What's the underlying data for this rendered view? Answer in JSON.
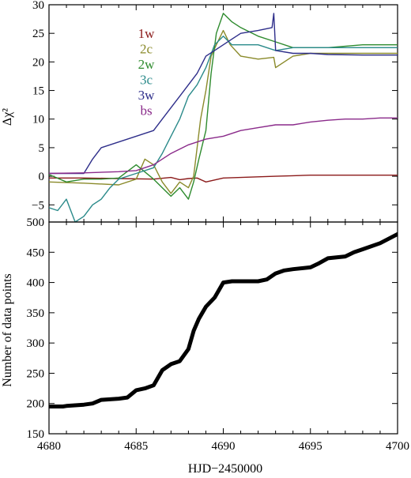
{
  "chart_data": [
    {
      "type": "line",
      "title": "",
      "xlabel": "",
      "ylabel": "Δχ²",
      "xlim": [
        4680,
        4700
      ],
      "ylim": [
        -8,
        30
      ],
      "yticks": [
        -5,
        0,
        5,
        10,
        15,
        20,
        25,
        30
      ],
      "grid": false,
      "legend_position": "top-center",
      "series": [
        {
          "name": "1w",
          "color": "#8b1a1a",
          "x": [
            4680,
            4682,
            4684,
            4686,
            4687,
            4687.5,
            4688,
            4688.5,
            4689,
            4690,
            4691,
            4692,
            4693,
            4694,
            4695,
            4696,
            4698,
            4700
          ],
          "y": [
            -0.3,
            -0.3,
            -0.4,
            -0.5,
            -0.2,
            -0.6,
            -0.4,
            -0.3,
            -1.0,
            -0.3,
            -0.2,
            -0.1,
            0.0,
            0.1,
            0.2,
            0.2,
            0.2,
            0.2
          ]
        },
        {
          "name": "2c",
          "color": "#8a8a2a",
          "x": [
            4680,
            4682,
            4684,
            4685,
            4685.5,
            4686,
            4686.5,
            4687,
            4687.5,
            4688,
            4688.3,
            4688.5,
            4688.7,
            4689,
            4689.3,
            4689.6,
            4690,
            4690.4,
            4691,
            4692,
            4692.9,
            4693,
            4694,
            4695,
            4696,
            4698,
            4700
          ],
          "y": [
            -1.0,
            -1.2,
            -1.5,
            -0.5,
            3.0,
            2.0,
            -1.0,
            -3.0,
            -1.0,
            -2.0,
            0.0,
            5.0,
            10.0,
            15.0,
            21.0,
            23.0,
            25.5,
            23.0,
            21.0,
            20.5,
            20.8,
            19.0,
            21.0,
            21.5,
            21.5,
            21.5,
            21.5
          ]
        },
        {
          "name": "2w",
          "color": "#2e8b2e",
          "x": [
            4680,
            4681,
            4682,
            4683,
            4684,
            4685,
            4686,
            4686.5,
            4687,
            4687.5,
            4688,
            4688.3,
            4688.6,
            4689,
            4689.3,
            4689.6,
            4690,
            4690.5,
            4691,
            4692,
            4693,
            4694,
            4695,
            4696,
            4698,
            4700
          ],
          "y": [
            0.3,
            -1.0,
            -0.5,
            -0.5,
            -0.3,
            2.0,
            -0.5,
            -2.0,
            -3.5,
            -2.0,
            -4.0,
            -1.0,
            3.0,
            8.0,
            18.0,
            25.0,
            28.5,
            27.0,
            26.0,
            24.5,
            23.5,
            22.5,
            22.5,
            22.5,
            23.0,
            23.0
          ]
        },
        {
          "name": "3c",
          "color": "#2a8a8a",
          "x": [
            4680,
            4680.5,
            4681,
            4681.5,
            4682,
            4682.5,
            4683,
            4683.5,
            4684,
            4685,
            4686,
            4686.5,
            4687,
            4687.5,
            4688,
            4688.5,
            4689,
            4689.5,
            4690,
            4690.5,
            4691,
            4692,
            4693,
            4694,
            4695,
            4696,
            4698,
            4700
          ],
          "y": [
            -5.5,
            -6.0,
            -4.0,
            -8.0,
            -7.0,
            -5.0,
            -4.0,
            -2.0,
            -0.5,
            0.5,
            1.5,
            4.0,
            7.0,
            10.0,
            14.0,
            16.0,
            19.0,
            23.0,
            24.5,
            23.0,
            23.0,
            23.0,
            22.0,
            22.5,
            22.5,
            22.5,
            22.5,
            22.5
          ]
        },
        {
          "name": "3w",
          "color": "#2e2e8a",
          "x": [
            4680,
            4681,
            4682,
            4682.5,
            4683,
            4684,
            4685,
            4686,
            4686.5,
            4687,
            4687.5,
            4688,
            4688.5,
            4689,
            4689.5,
            4690,
            4690.5,
            4691,
            4692,
            4692.8,
            4692.9,
            4693,
            4694,
            4695,
            4696,
            4698,
            4700
          ],
          "y": [
            0.5,
            0.5,
            0.5,
            3.0,
            5.0,
            6.0,
            7.0,
            8.0,
            10.0,
            12.0,
            14.0,
            16.0,
            18.0,
            21.0,
            22.0,
            23.0,
            24.0,
            25.0,
            25.5,
            26.0,
            28.5,
            22.0,
            21.5,
            21.5,
            21.3,
            21.2,
            21.2
          ]
        },
        {
          "name": "bs",
          "color": "#8a2a8a",
          "x": [
            4680,
            4682,
            4684,
            4685,
            4686,
            4687,
            4688,
            4689,
            4690,
            4691,
            4692,
            4693,
            4694,
            4695,
            4696,
            4697,
            4698,
            4699,
            4700
          ],
          "y": [
            0.5,
            0.6,
            0.8,
            1.0,
            2.0,
            4.0,
            5.5,
            6.5,
            7.0,
            8.0,
            8.5,
            9.0,
            9.0,
            9.5,
            9.8,
            10.0,
            10.0,
            10.2,
            10.2
          ]
        }
      ]
    },
    {
      "type": "line",
      "title": "",
      "xlabel": "HJD−2450000",
      "ylabel": "Number of data points",
      "xlim": [
        4680,
        4700
      ],
      "ylim": [
        150,
        500
      ],
      "xticks": [
        4680,
        4685,
        4690,
        4695,
        4700
      ],
      "yticks": [
        150,
        200,
        250,
        300,
        350,
        400,
        450,
        500
      ],
      "grid": false,
      "series": [
        {
          "name": "",
          "color": "#000000",
          "x": [
            4680,
            4680.8,
            4681,
            4682,
            4682.5,
            4683,
            4684,
            4684.5,
            4685,
            4685.5,
            4686,
            4686.5,
            4687,
            4687.5,
            4688,
            4688.3,
            4688.6,
            4689,
            4689.5,
            4690,
            4690.5,
            4691,
            4692,
            4692.5,
            4693,
            4693.5,
            4694,
            4695,
            4695.5,
            4696,
            4697,
            4697.5,
            4698,
            4699,
            4700
          ],
          "y": [
            195,
            195,
            196,
            198,
            200,
            206,
            208,
            210,
            222,
            225,
            230,
            255,
            265,
            270,
            290,
            320,
            340,
            360,
            375,
            400,
            402,
            402,
            402,
            405,
            415,
            420,
            422,
            425,
            432,
            440,
            443,
            450,
            455,
            465,
            480
          ]
        }
      ]
    }
  ]
}
